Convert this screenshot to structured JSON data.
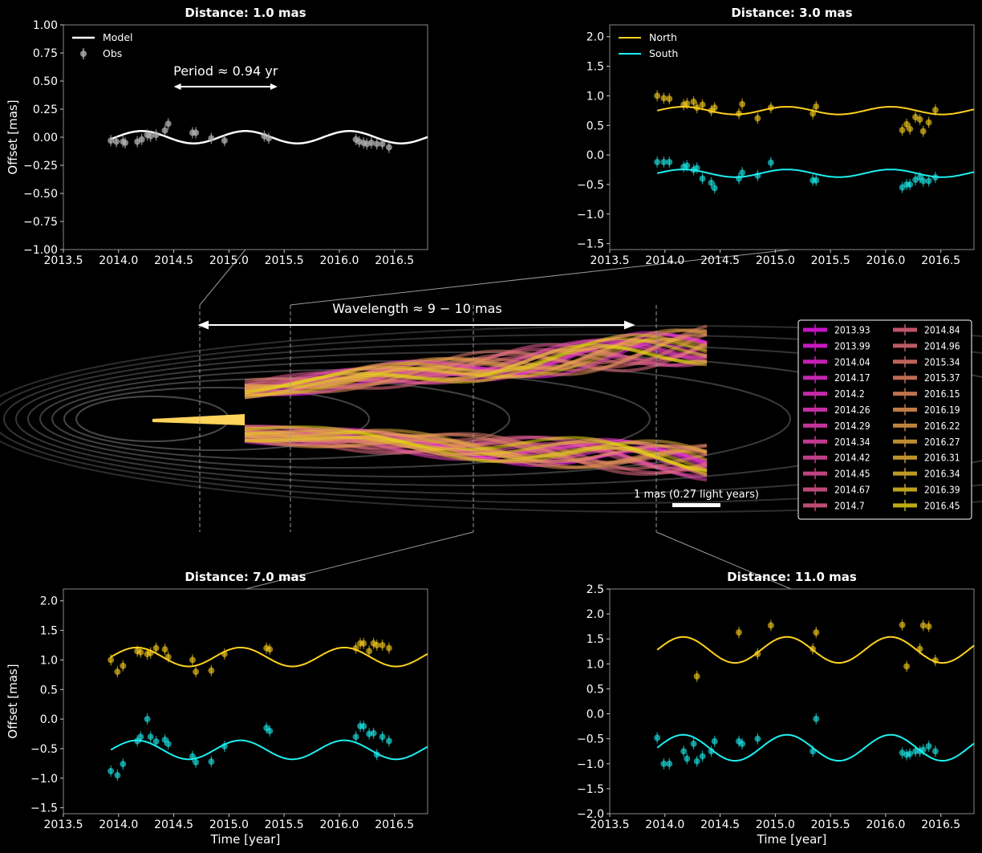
{
  "figure": {
    "wavelength_label": "Wavelength ≈ 9 − 10 mas",
    "scale_bar_label": "1 mas (0.27 light years)",
    "colors": {
      "north": "#ffd21f",
      "south": "#1ef0f0",
      "model": "#ffffff",
      "obs": "#b0b0b0",
      "contour": "#555555",
      "guide": "#999999"
    }
  },
  "legend_years": [
    "2013.93",
    "2013.99",
    "2014.04",
    "2014.17",
    "2014.2",
    "2014.26",
    "2014.29",
    "2014.34",
    "2014.42",
    "2014.45",
    "2014.67",
    "2014.7",
    "2014.84",
    "2014.96",
    "2015.34",
    "2015.37",
    "2016.15",
    "2016.19",
    "2016.22",
    "2016.27",
    "2016.31",
    "2016.34",
    "2016.39",
    "2016.45"
  ],
  "chart_data": [
    {
      "type": "line",
      "title": "Distance: 1.0 mas",
      "xlabel": "",
      "ylabel": "Offset [mas]",
      "xlim": [
        2013.5,
        2016.8
      ],
      "ylim": [
        -1.0,
        1.0
      ],
      "xticks": [
        "2013.5",
        "2014.0",
        "2014.5",
        "2015.0",
        "2015.5",
        "2016.0",
        "2016.5"
      ],
      "yticks": [
        "1.00",
        "0.75",
        "0.50",
        "0.25",
        "0.00",
        "−0.25",
        "−0.50",
        "−0.75",
        "−1.00"
      ],
      "annotation": "Period ≈ 0.94 yr",
      "legend": [
        "Model",
        "Obs"
      ],
      "legend_position": "top-left",
      "model": {
        "offset": 0.0,
        "amplitude": 0.055,
        "period": 0.94,
        "phase": -0.3,
        "x_range": [
          2013.93,
          2016.8
        ]
      },
      "series": [
        {
          "name": "Obs",
          "x": [
            2013.93,
            2013.98,
            2014.04,
            2014.06,
            2014.17,
            2014.21,
            2014.26,
            2014.29,
            2014.34,
            2014.42,
            2014.45,
            2014.67,
            2014.7,
            2014.84,
            2014.96,
            2015.32,
            2015.36,
            2016.15,
            2016.18,
            2016.22,
            2016.25,
            2016.29,
            2016.34,
            2016.39,
            2016.45
          ],
          "y": [
            -0.03,
            -0.04,
            -0.04,
            -0.05,
            -0.04,
            -0.02,
            0.02,
            0.01,
            0.02,
            0.06,
            0.12,
            0.04,
            0.04,
            -0.01,
            -0.03,
            0.01,
            -0.01,
            -0.02,
            -0.04,
            -0.05,
            -0.06,
            -0.05,
            -0.06,
            -0.06,
            -0.09
          ]
        }
      ]
    },
    {
      "type": "line",
      "title": "Distance: 3.0 mas",
      "xlabel": "",
      "ylabel": "",
      "xlim": [
        2013.5,
        2016.8
      ],
      "ylim": [
        -1.6,
        2.2
      ],
      "xticks": [
        "2013.5",
        "2014.0",
        "2014.5",
        "2015.0",
        "2015.5",
        "2016.0",
        "2016.5"
      ],
      "yticks": [
        "2.0",
        "1.5",
        "1.0",
        "0.5",
        "0.0",
        "−0.5",
        "−1.0",
        "−1.5"
      ],
      "legend": [
        "North",
        "South"
      ],
      "legend_position": "top-left",
      "model_north": {
        "offset": 0.75,
        "amplitude": 0.065,
        "period": 0.94,
        "phase": 0.0,
        "x_range": [
          2013.93,
          2016.8
        ]
      },
      "model_south": {
        "offset": -0.31,
        "amplitude": 0.065,
        "period": 0.94,
        "phase": 0.0,
        "x_range": [
          2013.93,
          2016.8
        ]
      },
      "series": [
        {
          "name": "North",
          "x": [
            2013.93,
            2013.99,
            2014.04,
            2014.17,
            2014.2,
            2014.26,
            2014.29,
            2014.34,
            2014.42,
            2014.45,
            2014.67,
            2014.7,
            2014.84,
            2014.96,
            2015.34,
            2015.37,
            2016.15,
            2016.19,
            2016.22,
            2016.27,
            2016.31,
            2016.34,
            2016.39,
            2016.45
          ],
          "y": [
            1.0,
            0.96,
            0.95,
            0.85,
            0.87,
            0.9,
            0.8,
            0.85,
            0.75,
            0.8,
            0.7,
            0.86,
            0.62,
            0.8,
            0.7,
            0.82,
            0.42,
            0.52,
            0.44,
            0.64,
            0.6,
            0.4,
            0.55,
            0.76
          ]
        },
        {
          "name": "South",
          "x": [
            2013.93,
            2013.99,
            2014.04,
            2014.17,
            2014.2,
            2014.26,
            2014.29,
            2014.34,
            2014.42,
            2014.45,
            2014.67,
            2014.7,
            2014.84,
            2014.96,
            2015.34,
            2015.37,
            2016.15,
            2016.19,
            2016.22,
            2016.27,
            2016.31,
            2016.34,
            2016.39,
            2016.45
          ],
          "y": [
            -0.12,
            -0.12,
            -0.12,
            -0.2,
            -0.18,
            -0.25,
            -0.22,
            -0.4,
            -0.47,
            -0.56,
            -0.4,
            -0.3,
            -0.35,
            -0.13,
            -0.43,
            -0.43,
            -0.55,
            -0.5,
            -0.5,
            -0.42,
            -0.38,
            -0.44,
            -0.44,
            -0.38
          ]
        }
      ]
    },
    {
      "type": "line",
      "title": "Distance: 7.0 mas",
      "xlabel": "Time [year]",
      "ylabel": "Offset [mas]",
      "xlim": [
        2013.5,
        2016.8
      ],
      "ylim": [
        -1.6,
        2.2
      ],
      "xticks": [
        "2013.5",
        "2014.0",
        "2014.5",
        "2015.0",
        "2015.5",
        "2016.0",
        "2016.5"
      ],
      "yticks": [
        "2.0",
        "1.5",
        "1.0",
        "0.5",
        "0.0",
        "−0.5",
        "−1.0",
        "−1.5"
      ],
      "model_north": {
        "offset": 1.05,
        "amplitude": 0.16,
        "period": 0.94,
        "phase": 0.0,
        "x_range": [
          2013.93,
          2016.8
        ]
      },
      "model_south": {
        "offset": -0.52,
        "amplitude": 0.16,
        "period": 0.94,
        "phase": 0.0,
        "x_range": [
          2013.93,
          2016.8
        ]
      },
      "series": [
        {
          "name": "North",
          "x": [
            2013.93,
            2013.99,
            2014.04,
            2014.17,
            2014.2,
            2014.26,
            2014.29,
            2014.34,
            2014.42,
            2014.45,
            2014.67,
            2014.7,
            2014.84,
            2014.96,
            2015.34,
            2015.37,
            2016.15,
            2016.19,
            2016.22,
            2016.27,
            2016.31,
            2016.34,
            2016.39,
            2016.45
          ],
          "y": [
            1.0,
            0.8,
            0.9,
            1.15,
            1.13,
            1.1,
            1.12,
            1.2,
            1.18,
            1.05,
            1.0,
            0.8,
            0.82,
            1.1,
            1.2,
            1.18,
            1.2,
            1.28,
            1.28,
            1.15,
            1.28,
            1.25,
            1.25,
            1.2
          ]
        },
        {
          "name": "South",
          "x": [
            2013.93,
            2013.99,
            2014.04,
            2014.17,
            2014.2,
            2014.26,
            2014.29,
            2014.34,
            2014.42,
            2014.45,
            2014.67,
            2014.7,
            2014.84,
            2014.96,
            2015.34,
            2015.37,
            2016.15,
            2016.19,
            2016.22,
            2016.27,
            2016.31,
            2016.34,
            2016.39,
            2016.45
          ],
          "y": [
            -0.88,
            -0.95,
            -0.76,
            -0.37,
            -0.3,
            0.0,
            -0.3,
            -0.38,
            -0.35,
            -0.42,
            -0.63,
            -0.73,
            -0.72,
            -0.46,
            -0.15,
            -0.2,
            -0.3,
            -0.12,
            -0.12,
            -0.25,
            -0.24,
            -0.6,
            -0.3,
            -0.37
          ]
        }
      ]
    },
    {
      "type": "line",
      "title": "Distance: 11.0 mas",
      "xlabel": "Time [year]",
      "ylabel": "",
      "xlim": [
        2013.5,
        2016.8
      ],
      "ylim": [
        -2.0,
        2.5
      ],
      "xticks": [
        "2013.5",
        "2014.0",
        "2014.5",
        "2015.0",
        "2015.5",
        "2016.0",
        "2016.5"
      ],
      "yticks": [
        "2.5",
        "2.0",
        "1.5",
        "1.0",
        "0.5",
        "0.0",
        "−0.5",
        "−1.0",
        "−1.5",
        "−2.0"
      ],
      "model_north": {
        "offset": 1.28,
        "amplitude": 0.26,
        "period": 0.94,
        "phase": 0.0,
        "x_range": [
          2013.93,
          2016.8
        ]
      },
      "model_south": {
        "offset": -0.68,
        "amplitude": 0.26,
        "period": 0.94,
        "phase": 0.0,
        "x_range": [
          2013.93,
          2016.8
        ]
      },
      "series": [
        {
          "name": "North",
          "x": [
            2014.29,
            2014.67,
            2014.84,
            2014.96,
            2015.34,
            2015.37,
            2016.15,
            2016.19,
            2016.31,
            2016.34,
            2016.39,
            2016.45
          ],
          "y": [
            0.75,
            1.63,
            1.2,
            1.77,
            1.3,
            1.63,
            1.78,
            0.95,
            1.3,
            1.77,
            1.75,
            1.07
          ]
        },
        {
          "name": "South",
          "x": [
            2013.93,
            2013.99,
            2014.04,
            2014.17,
            2014.2,
            2014.26,
            2014.29,
            2014.34,
            2014.42,
            2014.45,
            2014.67,
            2014.7,
            2014.84,
            2015.34,
            2015.37,
            2016.15,
            2016.19,
            2016.22,
            2016.27,
            2016.31,
            2016.34,
            2016.39,
            2016.45
          ],
          "y": [
            -0.48,
            -1.0,
            -1.0,
            -0.75,
            -0.9,
            -0.6,
            -0.95,
            -0.85,
            -0.75,
            -0.55,
            -0.55,
            -0.6,
            -0.5,
            -0.75,
            -0.1,
            -0.78,
            -0.82,
            -0.8,
            -0.75,
            -0.75,
            -0.72,
            -0.65,
            -0.75
          ]
        }
      ]
    }
  ]
}
